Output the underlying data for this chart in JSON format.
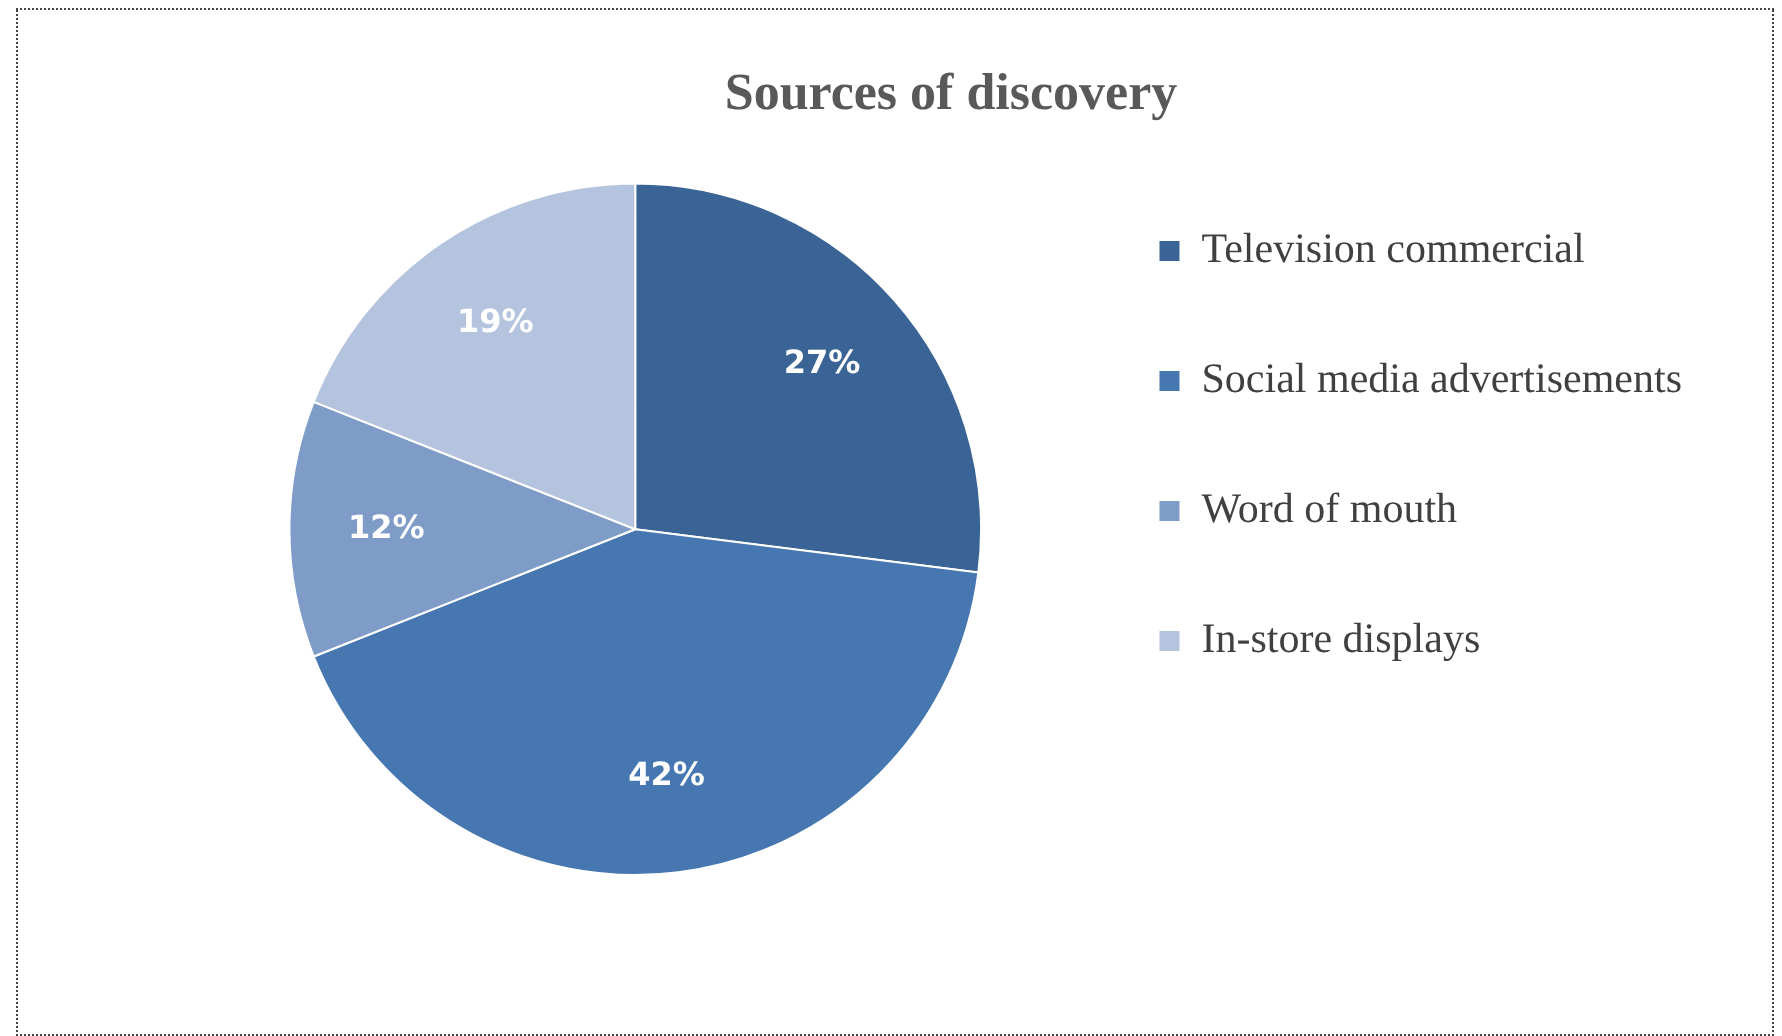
{
  "chart_data": {
    "type": "pie",
    "title": "Sources of discovery",
    "categories": [
      "Television commercial",
      "Social media advertisements",
      "Word of mouth",
      "In-store displays"
    ],
    "values": [
      27,
      42,
      12,
      19
    ],
    "colors": [
      "#3b6496",
      "#4677b0",
      "#7f9cc9",
      "#b4c3de"
    ],
    "value_labels": [
      "27%",
      "42%",
      "12%",
      "19%"
    ],
    "legend": "right"
  }
}
